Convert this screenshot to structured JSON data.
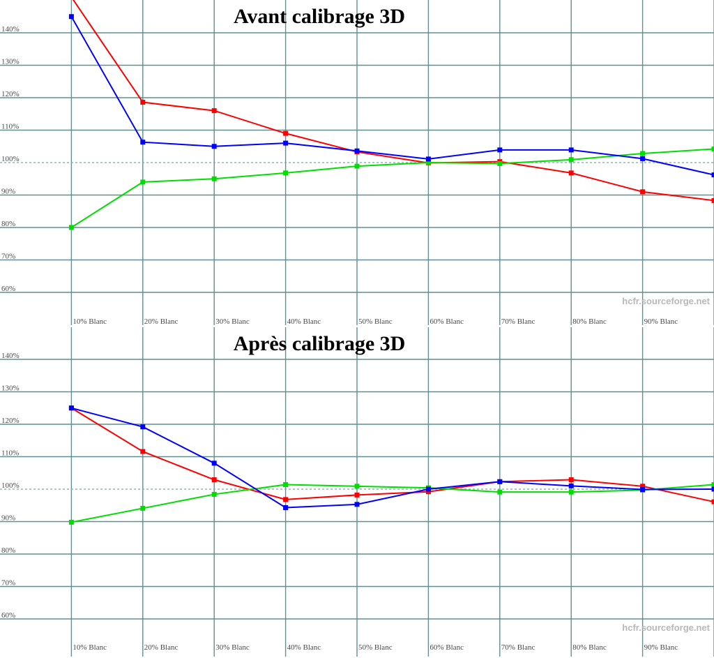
{
  "colors": {
    "background": "#ffffff",
    "grid": "#5f8f8f",
    "reference_dashed": "#7fa5a5",
    "tick_text": "#4a4a4a",
    "title_text": "#000000",
    "watermark_text": "#b8b8b8",
    "red": "#ff0000",
    "green": "#00dd00",
    "blue": "#0000ff"
  },
  "chart_data": [
    {
      "type": "line",
      "title": "Avant calibrage 3D",
      "watermark": "hcfr.sourceforge.net",
      "x_percent": [
        10,
        20,
        30,
        40,
        50,
        60,
        70,
        80,
        90,
        100
      ],
      "xtick_labels": [
        "10% Blanc",
        "20% Blanc",
        "30% Blanc",
        "40% Blanc",
        "50% Blanc",
        "60% Blanc",
        "70% Blanc",
        "80% Blanc",
        "90% Blanc"
      ],
      "ytick_labels": [
        "140%",
        "130%",
        "120%",
        "110%",
        "100%",
        "90%",
        "80%",
        "70%",
        "60%"
      ],
      "reference_line_percent": 100,
      "ylim": [
        57,
        150
      ],
      "grid": true,
      "legend": "none",
      "series": [
        {
          "name": "red",
          "color": "#ff0000",
          "values": [
            151.0,
            118.6,
            116.0,
            109.0,
            103.3,
            99.9,
            100.3,
            96.8,
            91.0,
            88.3
          ]
        },
        {
          "name": "green",
          "color": "#00dd00",
          "values": [
            80.0,
            94.0,
            95.0,
            96.8,
            98.9,
            100.0,
            99.7,
            100.9,
            102.8,
            104.2
          ]
        },
        {
          "name": "blue",
          "color": "#0000ff",
          "values": [
            145.0,
            106.3,
            105.0,
            106.0,
            103.6,
            101.1,
            103.9,
            103.9,
            101.2,
            96.2
          ]
        }
      ]
    },
    {
      "type": "line",
      "title": "Après calibrage 3D",
      "watermark": "hcfr.sourceforge.net",
      "x_percent": [
        10,
        20,
        30,
        40,
        50,
        60,
        70,
        80,
        90,
        100
      ],
      "xtick_labels": [
        "10% Blanc",
        "20% Blanc",
        "30% Blanc",
        "40% Blanc",
        "50% Blanc",
        "60% Blanc",
        "70% Blanc",
        "80% Blanc",
        "90% Blanc"
      ],
      "ytick_labels": [
        "140%",
        "130%",
        "120%",
        "110%",
        "100%",
        "90%",
        "80%",
        "70%",
        "60%"
      ],
      "reference_line_percent": 100,
      "ylim": [
        57,
        150
      ],
      "grid": true,
      "legend": "none",
      "series": [
        {
          "name": "red",
          "color": "#ff0000",
          "values": [
            125.0,
            111.6,
            102.9,
            96.8,
            98.2,
            99.2,
            102.3,
            102.9,
            100.9,
            96.1
          ]
        },
        {
          "name": "green",
          "color": "#00dd00",
          "values": [
            89.8,
            94.1,
            98.4,
            101.4,
            100.9,
            100.4,
            99.1,
            99.1,
            99.7,
            101.4
          ]
        },
        {
          "name": "blue",
          "color": "#0000ff",
          "values": [
            125.0,
            119.2,
            108.0,
            94.3,
            95.3,
            100.0,
            102.3,
            101.0,
            99.9,
            100.0
          ]
        }
      ]
    }
  ]
}
